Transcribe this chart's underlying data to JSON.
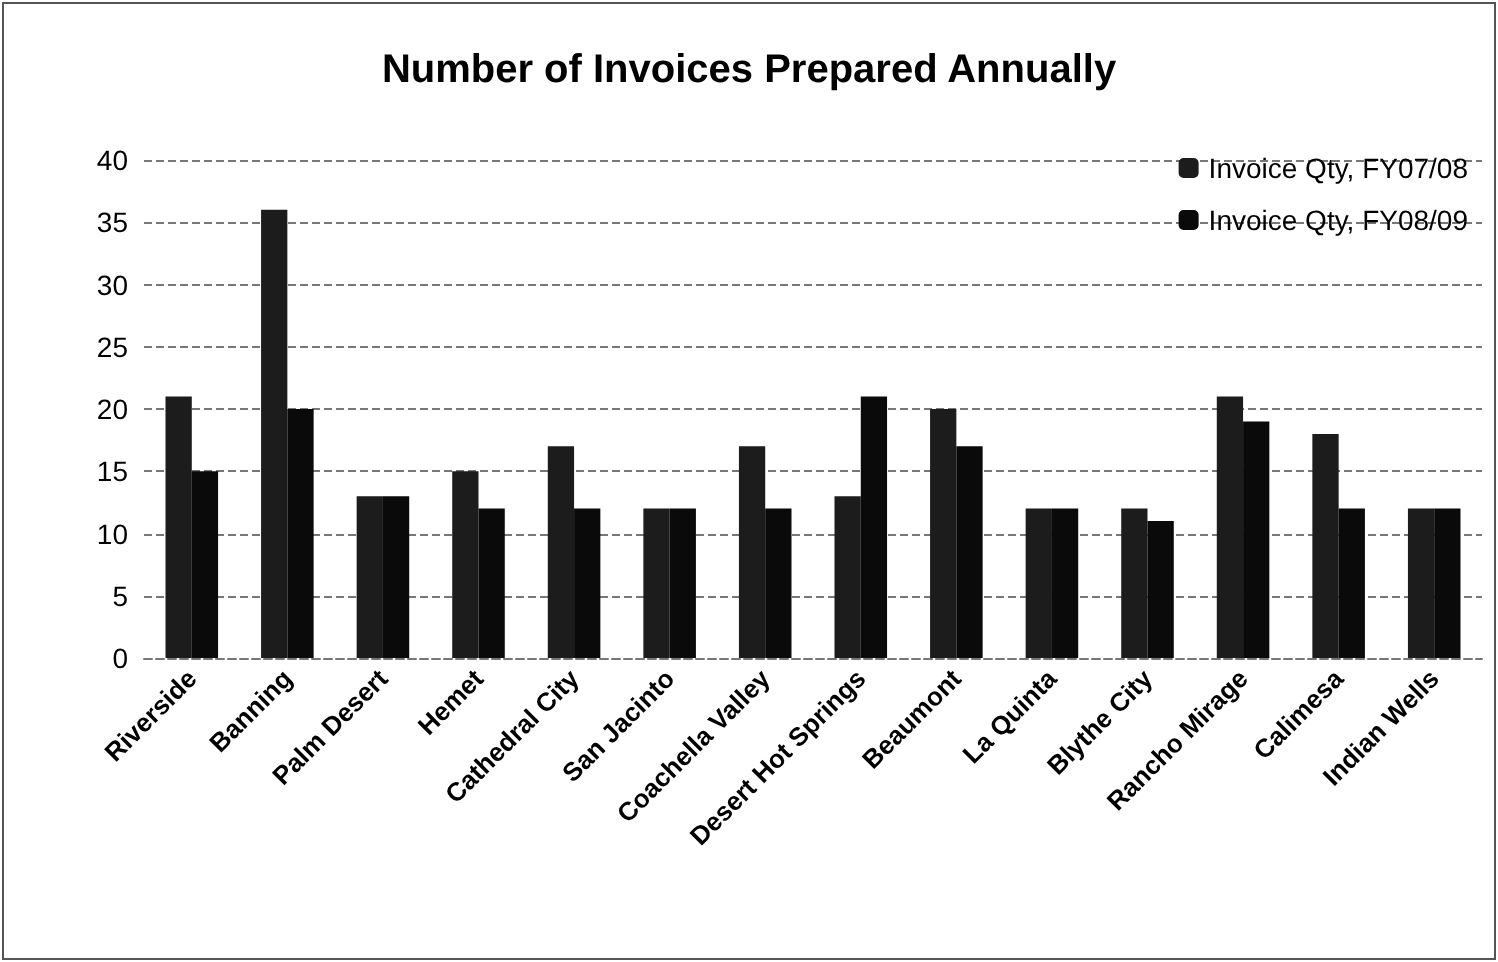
{
  "chart_data": {
    "type": "bar",
    "title": "Number of Invoices Prepared Annually",
    "categories": [
      "Riverside",
      "Banning",
      "Palm Desert",
      "Hemet",
      "Cathedral City",
      "San Jacinto",
      "Coachella Valley",
      "Desert Hot Springs",
      "Beaumont",
      "La Quinta",
      "Blythe City",
      "Rancho Mirage",
      "Calimesa",
      "Indian Wells"
    ],
    "series": [
      {
        "name": "Invoice Qty, FY07/08",
        "color": "#1c1c1c",
        "values": [
          21,
          36,
          13,
          15,
          17,
          12,
          17,
          13,
          20,
          12,
          12,
          21,
          18,
          12
        ]
      },
      {
        "name": "Invoice Qty, FY08/09",
        "color": "#0a0a0a",
        "values": [
          15,
          20,
          13,
          12,
          12,
          12,
          12,
          21,
          17,
          12,
          11,
          19,
          12,
          12
        ]
      }
    ],
    "ylim": [
      0,
      40
    ],
    "yticks": [
      0,
      5,
      10,
      15,
      20,
      25,
      30,
      35,
      40
    ],
    "grid": "y",
    "legend": "top right"
  }
}
